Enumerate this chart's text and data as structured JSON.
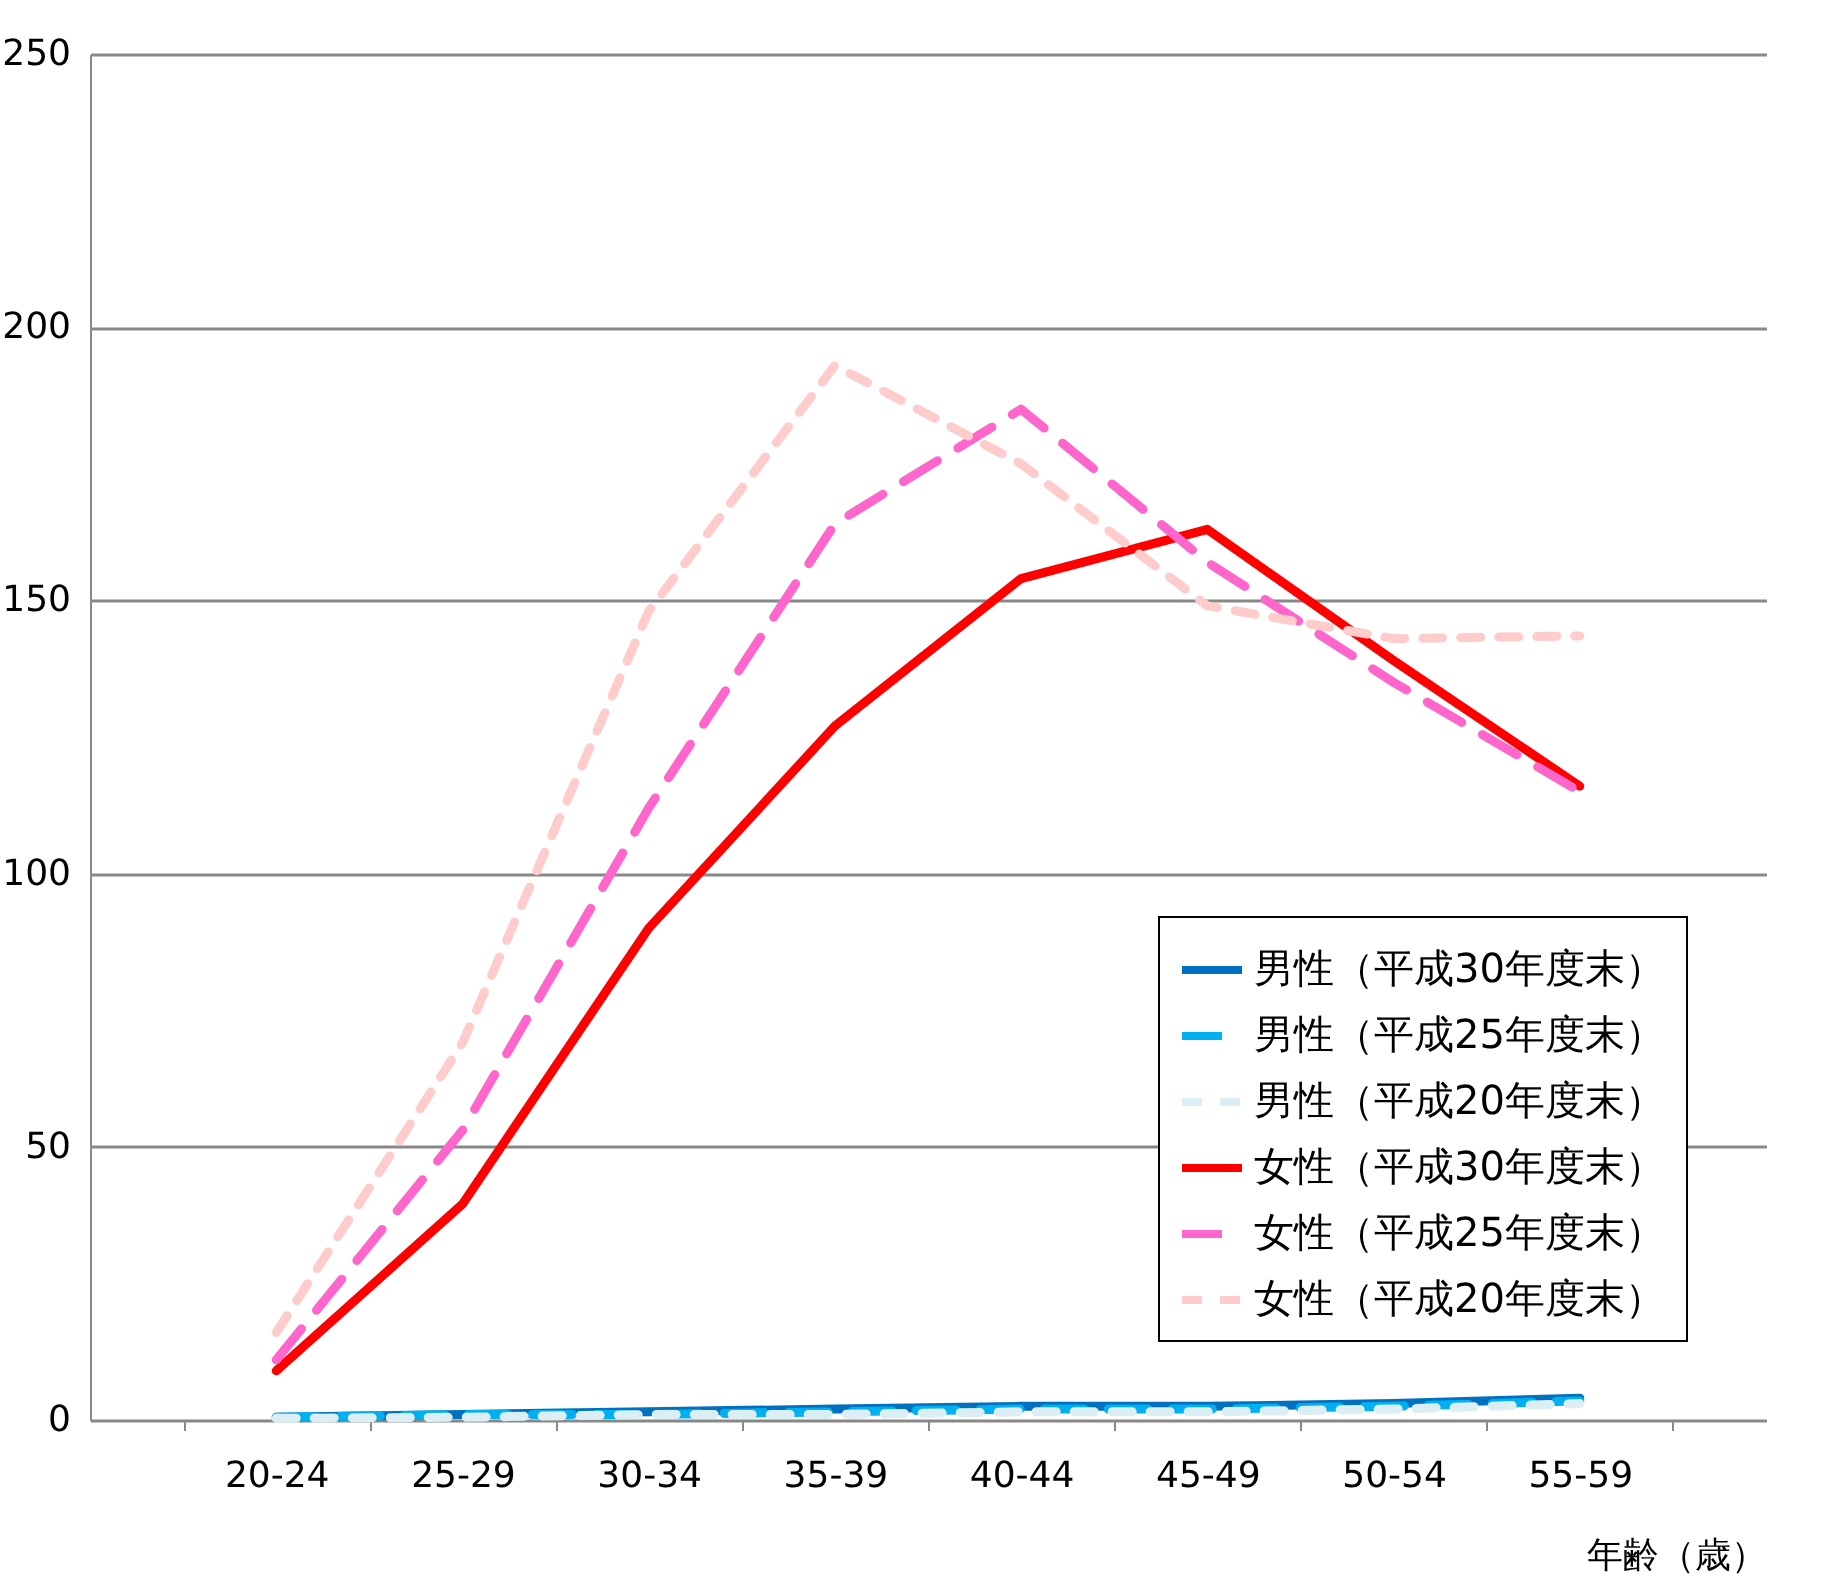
{
  "chart_data": {
    "type": "line",
    "xlabel": "年齢（歳）",
    "categories": [
      "20-24",
      "25-29",
      "30-34",
      "35-39",
      "40-44",
      "45-49",
      "50-54",
      "55-59"
    ],
    "series": [
      {
        "name": "男性（平成30年度末）",
        "color": "#0070c0",
        "line_style": "solid",
        "values": [
          0.5,
          1,
          1.5,
          2,
          2.5,
          2.5,
          3,
          4
        ]
      },
      {
        "name": "男性（平成25年度末）",
        "color": "#00b0f0",
        "line_style": "dashed",
        "values": [
          0.5,
          1,
          1,
          1.5,
          2,
          2,
          2.5,
          3.5
        ]
      },
      {
        "name": "男性（平成20年度末）",
        "color": "#daeef3",
        "line_style": "dotted",
        "values": [
          0.3,
          0.5,
          1,
          1,
          1.5,
          1.5,
          2,
          3
        ]
      },
      {
        "name": "女性（平成30年度末）",
        "color": "#ff0000",
        "line_style": "solid",
        "values": [
          9,
          39.5,
          90,
          127,
          154,
          163,
          139,
          116
        ]
      },
      {
        "name": "女性（平成25年度末）",
        "color": "#ff66cc",
        "line_style": "dashed",
        "values": [
          11,
          53,
          112,
          164,
          185,
          157,
          135,
          115
        ]
      },
      {
        "name": "女性（平成20年度末）",
        "color": "#ffcccc",
        "line_style": "dotted",
        "values": [
          16,
          69,
          148,
          193,
          175,
          149,
          143,
          143.5
        ]
      }
    ],
    "ylim": [
      0,
      250
    ],
    "yticks": [
      0,
      50,
      100,
      150,
      200,
      250
    ],
    "grid": "y",
    "legend": "bottom right",
    "marker": "none"
  }
}
